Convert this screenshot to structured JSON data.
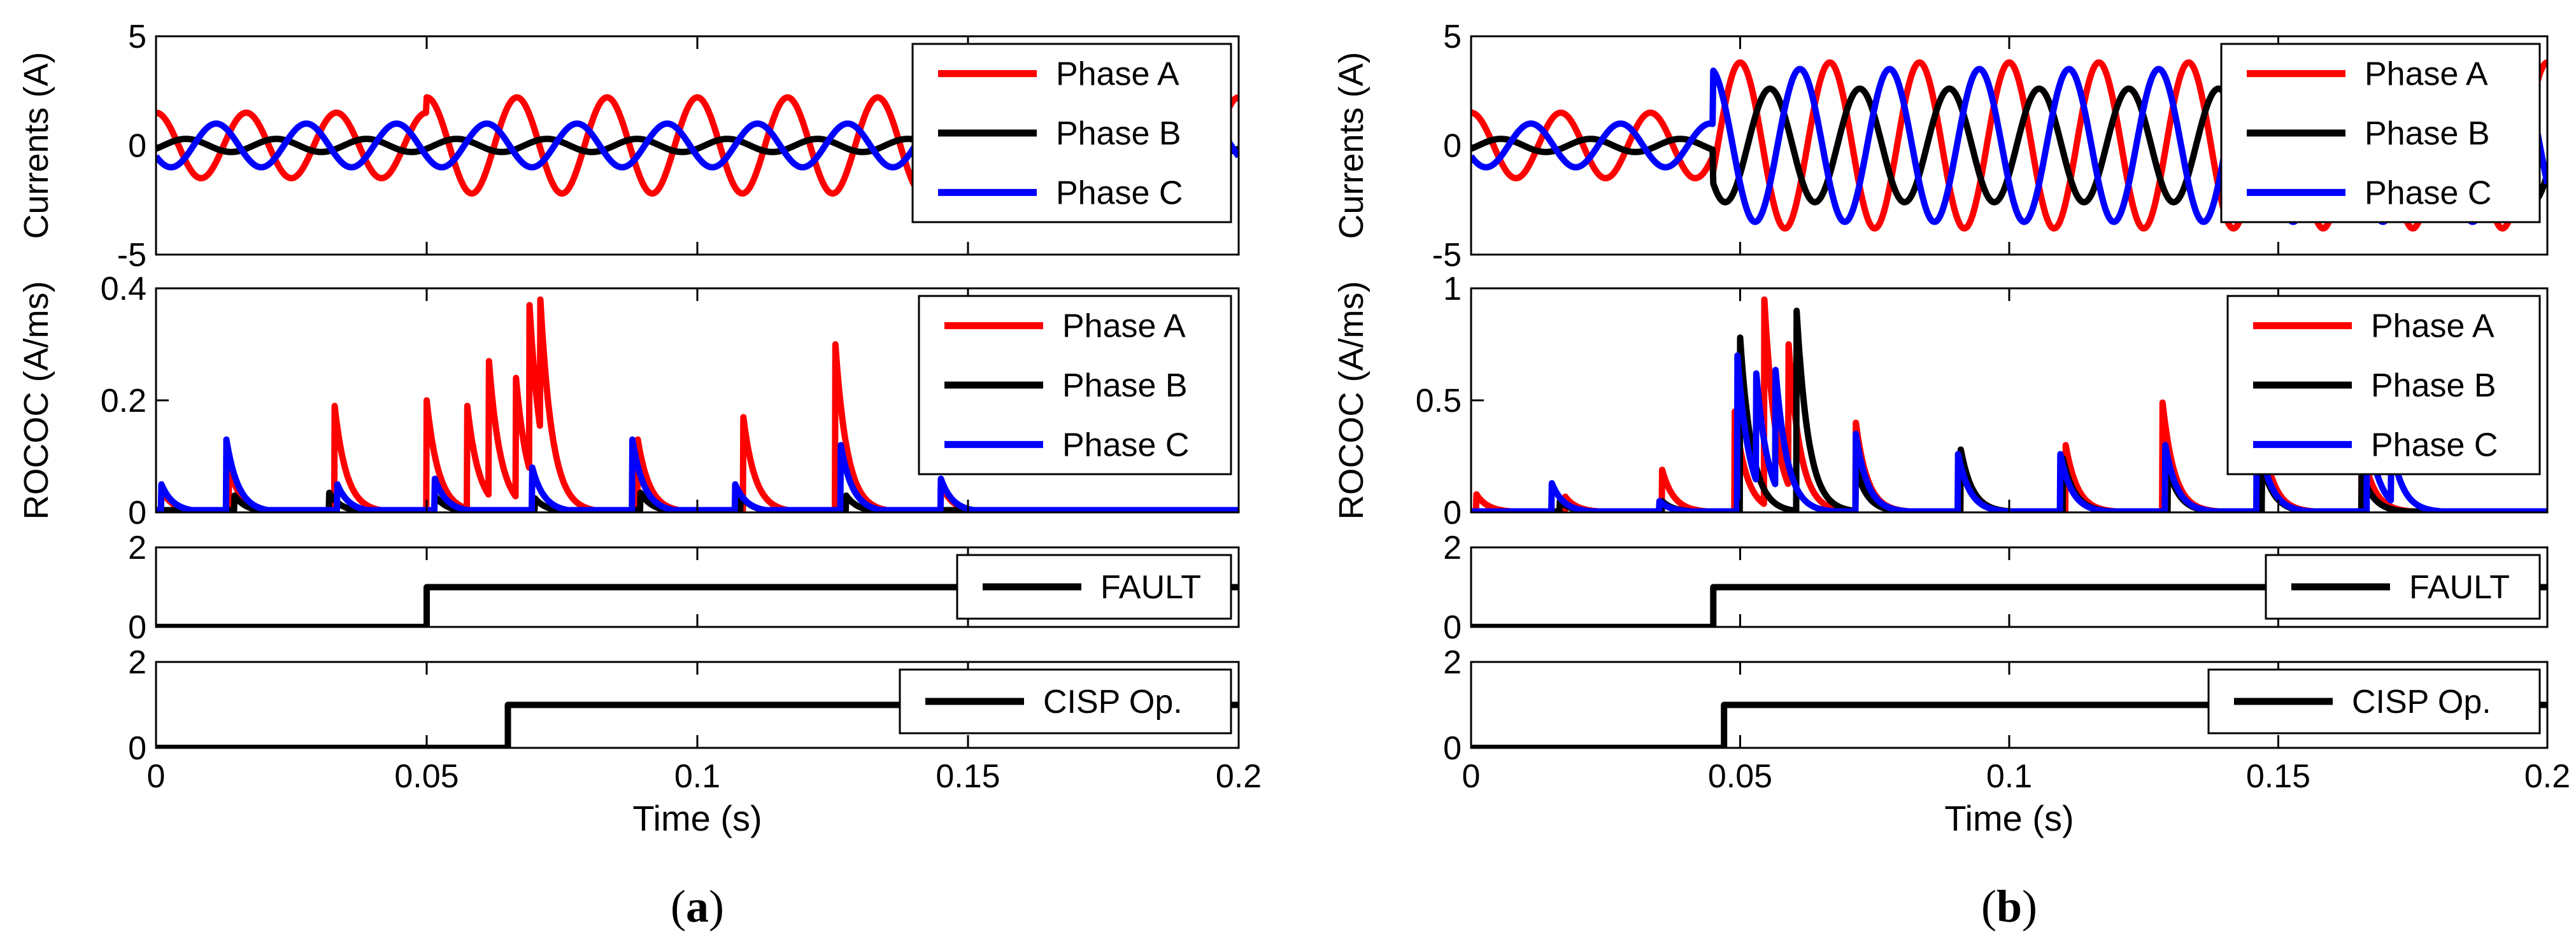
{
  "colors": {
    "phase_a": "#ff0000",
    "phase_b": "#000000",
    "phase_c": "#0000ff",
    "frame": "#000000",
    "background": "#ffffff"
  },
  "panels": [
    {
      "id": "a",
      "label": "a",
      "xlabel": "Time (s)",
      "xlim": [
        0,
        0.2
      ],
      "xticks": [
        0,
        0.05,
        0.1,
        0.15,
        0.2
      ],
      "xtick_labels": [
        "0",
        "0.05",
        "0.1",
        "0.15",
        "0.2"
      ],
      "fault_time": 0.05,
      "trip_time": 0.065
    },
    {
      "id": "b",
      "label": "b",
      "xlabel": "Time (s)",
      "xlim": [
        0,
        0.2
      ],
      "xticks": [
        0,
        0.05,
        0.1,
        0.15,
        0.2
      ],
      "xtick_labels": [
        "0",
        "0.05",
        "0.1",
        "0.15",
        "0.2"
      ],
      "fault_time": 0.045,
      "trip_time": 0.047
    }
  ],
  "chart_data": [
    {
      "panel": "a",
      "type": "line",
      "title": "",
      "ylabel": "Currents (A)",
      "ylim": [
        -5,
        5
      ],
      "yticks": [
        -5,
        0,
        5
      ],
      "ytick_labels": [
        "-5",
        "0",
        "5"
      ],
      "legend": [
        "Phase A",
        "Phase B",
        "Phase C"
      ],
      "legend_position": "right",
      "series": [
        {
          "name": "Phase A",
          "frequency_hz": 60,
          "amplitude_before": 1.5,
          "amplitude_after": 2.2,
          "phase_deg": 90
        },
        {
          "name": "Phase B",
          "frequency_hz": 60,
          "amplitude_before": 0.3,
          "amplitude_after": 0.3,
          "phase_deg": -30
        },
        {
          "name": "Phase C",
          "frequency_hz": 60,
          "amplitude_before": 1.0,
          "amplitude_after": 1.0,
          "phase_deg": 210
        }
      ]
    },
    {
      "panel": "a",
      "type": "line",
      "title": "",
      "ylabel": "ROCOC (A/ms)",
      "ylim": [
        0,
        0.4
      ],
      "yticks": [
        0,
        0.2,
        0.4
      ],
      "ytick_labels": [
        "0",
        "0.2",
        "0.4"
      ],
      "legend": [
        "Phase A",
        "Phase B",
        "Phase C"
      ],
      "legend_position": "right",
      "series": [
        {
          "name": "Phase A",
          "spikes": [
            [
              0.001,
              0.04
            ],
            [
              0.0135,
              0.08
            ],
            [
              0.033,
              0.19
            ],
            [
              0.05,
              0.2
            ],
            [
              0.0575,
              0.19
            ],
            [
              0.0615,
              0.27
            ],
            [
              0.0665,
              0.24
            ],
            [
              0.069,
              0.37
            ],
            [
              0.071,
              0.38
            ],
            [
              0.089,
              0.13
            ],
            [
              0.1085,
              0.17
            ],
            [
              0.1255,
              0.3
            ],
            [
              0.145,
              0.05
            ]
          ]
        },
        {
          "name": "Phase B",
          "spikes": [
            [
              0.0145,
              0.03
            ],
            [
              0.032,
              0.035
            ],
            [
              0.0515,
              0.03
            ],
            [
              0.07,
              0.025
            ],
            [
              0.0895,
              0.035
            ],
            [
              0.108,
              0.03
            ],
            [
              0.1275,
              0.03
            ]
          ]
        },
        {
          "name": "Phase C",
          "spikes": [
            [
              0.001,
              0.05
            ],
            [
              0.013,
              0.13
            ],
            [
              0.0335,
              0.05
            ],
            [
              0.0515,
              0.06
            ],
            [
              0.0695,
              0.08
            ],
            [
              0.088,
              0.13
            ],
            [
              0.107,
              0.05
            ],
            [
              0.1265,
              0.12
            ],
            [
              0.145,
              0.06
            ]
          ]
        }
      ]
    },
    {
      "panel": "a",
      "type": "line",
      "title": "",
      "ylabel": "",
      "ylim": [
        0,
        2
      ],
      "yticks": [
        0,
        2
      ],
      "ytick_labels": [
        "0",
        "2"
      ],
      "legend": [
        "FAULT"
      ],
      "legend_position": "right",
      "series": [
        {
          "name": "FAULT",
          "x": [
            0,
            0.05,
            0.05,
            0.2
          ],
          "y": [
            0,
            0,
            1,
            1
          ]
        }
      ]
    },
    {
      "panel": "a",
      "type": "line",
      "title": "",
      "ylabel": "",
      "ylim": [
        0,
        2
      ],
      "yticks": [
        0,
        2
      ],
      "ytick_labels": [
        "0",
        "2"
      ],
      "legend": [
        "CISP Op."
      ],
      "legend_position": "right",
      "series": [
        {
          "name": "CISP Op.",
          "x": [
            0,
            0.065,
            0.065,
            0.2
          ],
          "y": [
            0,
            0,
            1,
            1
          ]
        }
      ]
    },
    {
      "panel": "b",
      "type": "line",
      "title": "",
      "ylabel": "Currents (A)",
      "ylim": [
        -5,
        5
      ],
      "yticks": [
        -5,
        0,
        5
      ],
      "ytick_labels": [
        "-5",
        "0",
        "5"
      ],
      "legend": [
        "Phase A",
        "Phase B",
        "Phase C"
      ],
      "legend_position": "right",
      "series": [
        {
          "name": "Phase A",
          "frequency_hz": 60,
          "amplitude_before": 1.5,
          "amplitude_after": 3.8,
          "phase_deg": 90
        },
        {
          "name": "Phase B",
          "frequency_hz": 60,
          "amplitude_before": 0.3,
          "amplitude_after": 2.6,
          "phase_deg": -30
        },
        {
          "name": "Phase C",
          "frequency_hz": 60,
          "amplitude_before": 1.0,
          "amplitude_after": 3.5,
          "phase_deg": 210
        }
      ]
    },
    {
      "panel": "b",
      "type": "line",
      "title": "",
      "ylabel": "ROCOC (A/ms)",
      "ylim": [
        0,
        1
      ],
      "yticks": [
        0,
        0.5,
        1
      ],
      "ytick_labels": [
        "0",
        "0.5",
        "1"
      ],
      "legend": [
        "Phase A",
        "Phase B",
        "Phase C"
      ],
      "legend_position": "right",
      "series": [
        {
          "name": "Phase A",
          "spikes": [
            [
              0.001,
              0.08
            ],
            [
              0.0175,
              0.07
            ],
            [
              0.0355,
              0.19
            ],
            [
              0.049,
              0.45
            ],
            [
              0.0545,
              0.95
            ],
            [
              0.059,
              0.75
            ],
            [
              0.0715,
              0.4
            ],
            [
              0.091,
              0.28
            ],
            [
              0.1105,
              0.3
            ],
            [
              0.1285,
              0.49
            ],
            [
              0.147,
              0.35
            ],
            [
              0.1655,
              0.3
            ]
          ]
        },
        {
          "name": "Phase B",
          "spikes": [
            [
              0.0165,
              0.05
            ],
            [
              0.0355,
              0.05
            ],
            [
              0.05,
              0.78
            ],
            [
              0.0605,
              0.9
            ],
            [
              0.0715,
              0.2
            ],
            [
              0.091,
              0.28
            ],
            [
              0.11,
              0.24
            ],
            [
              0.1295,
              0.2
            ],
            [
              0.147,
              0.22
            ],
            [
              0.1655,
              0.18
            ]
          ]
        },
        {
          "name": "Phase C",
          "spikes": [
            [
              0.015,
              0.13
            ],
            [
              0.035,
              0.05
            ],
            [
              0.0495,
              0.7
            ],
            [
              0.053,
              0.62
            ],
            [
              0.0565,
              0.66
            ],
            [
              0.0715,
              0.35
            ],
            [
              0.0905,
              0.26
            ],
            [
              0.1095,
              0.26
            ],
            [
              0.129,
              0.3
            ],
            [
              0.146,
              0.4
            ],
            [
              0.1665,
              0.4
            ],
            [
              0.171,
              0.3
            ]
          ]
        }
      ]
    },
    {
      "panel": "b",
      "type": "line",
      "title": "",
      "ylabel": "",
      "ylim": [
        0,
        2
      ],
      "yticks": [
        0,
        2
      ],
      "ytick_labels": [
        "0",
        "2"
      ],
      "legend": [
        "FAULT"
      ],
      "legend_position": "right",
      "series": [
        {
          "name": "FAULT",
          "x": [
            0,
            0.045,
            0.045,
            0.2
          ],
          "y": [
            0,
            0,
            1,
            1
          ]
        }
      ]
    },
    {
      "panel": "b",
      "type": "line",
      "title": "",
      "ylabel": "",
      "ylim": [
        0,
        2
      ],
      "yticks": [
        0,
        2
      ],
      "ytick_labels": [
        "0",
        "2"
      ],
      "legend": [
        "CISP Op."
      ],
      "legend_position": "right",
      "series": [
        {
          "name": "CISP Op.",
          "x": [
            0,
            0.047,
            0.047,
            0.2
          ],
          "y": [
            0,
            0,
            1,
            1
          ]
        }
      ]
    }
  ]
}
